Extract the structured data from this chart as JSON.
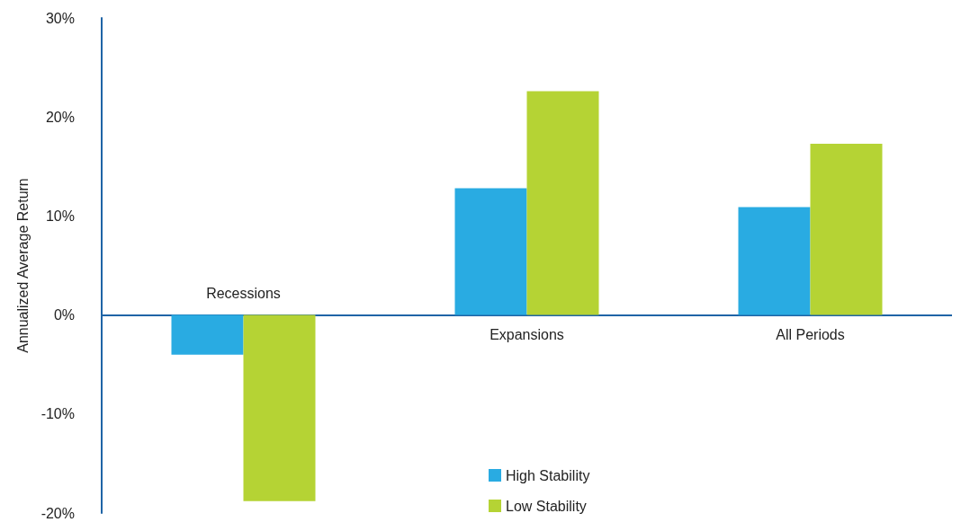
{
  "chart_data": {
    "type": "bar",
    "ylabel": "Annualized Average Return",
    "categories": [
      "Recessions",
      "Expansions",
      "All Periods"
    ],
    "series": [
      {
        "name": "High Stability",
        "color": "#29abe2",
        "values": [
          -4.0,
          12.8,
          10.9
        ]
      },
      {
        "name": "Low Stability",
        "color": "#b5d334",
        "values": [
          -18.8,
          22.6,
          17.3
        ]
      }
    ],
    "ylim": [
      -20,
      30
    ],
    "yticks": [
      {
        "value": -20,
        "label": "-20%"
      },
      {
        "value": -10,
        "label": "-10%"
      },
      {
        "value": 0,
        "label": "0%"
      },
      {
        "value": 10,
        "label": "10%"
      },
      {
        "value": 20,
        "label": "20%"
      },
      {
        "value": 30,
        "label": "30%"
      }
    ],
    "grid": false,
    "legend": "bottom"
  }
}
